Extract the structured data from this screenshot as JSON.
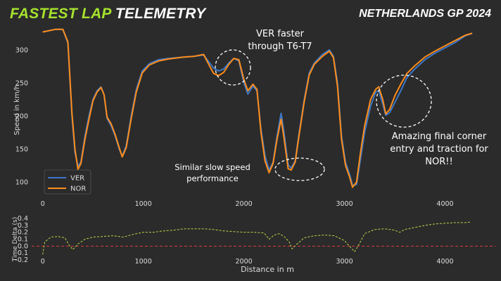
{
  "header": {
    "title_accent": "FASTEST LAP",
    "title_rest": "TELEMETRY",
    "event": "NETHERLANDS GP 2024"
  },
  "colors": {
    "background": "#2b2b2b",
    "accent": "#a6e22e",
    "ver": "#3a78c9",
    "nor": "#ff8c1a",
    "delta": "#b7d548",
    "zero_line": "#e23b3b",
    "text": "#ffffff",
    "axis_text": "#dddddd"
  },
  "annotations": {
    "t6t7": [
      "VER faster",
      "through T6-T7"
    ],
    "slow": [
      "Similar slow speed",
      "performance"
    ],
    "final": [
      "Amazing final corner",
      "entry and traction for",
      "NOR!!"
    ]
  },
  "chart_data": [
    {
      "type": "line",
      "ylabel": "Speed in km/h",
      "xlim": [
        -110,
        4500
      ],
      "ylim": [
        82,
        336
      ],
      "x_ticks": [
        0,
        1000,
        2000,
        3000,
        4000
      ],
      "y_ticks": [
        100,
        150,
        200,
        250,
        300
      ],
      "legend": [
        "VER",
        "NOR"
      ],
      "legend_position": "lower-left",
      "series": [
        {
          "name": "VER",
          "points": [
            [
              0,
              327
            ],
            [
              130,
              331
            ],
            [
              200,
              331
            ],
            [
              250,
              310
            ],
            [
              290,
              200
            ],
            [
              320,
              145
            ],
            [
              350,
              124
            ],
            [
              380,
              130
            ],
            [
              420,
              170
            ],
            [
              460,
              200
            ],
            [
              500,
              225
            ],
            [
              540,
              238
            ],
            [
              580,
              244
            ],
            [
              610,
              232
            ],
            [
              640,
              196
            ],
            [
              680,
              185
            ],
            [
              720,
              170
            ],
            [
              760,
              150
            ],
            [
              790,
              139
            ],
            [
              830,
              155
            ],
            [
              880,
              200
            ],
            [
              930,
              240
            ],
            [
              990,
              268
            ],
            [
              1060,
              279
            ],
            [
              1150,
              285
            ],
            [
              1250,
              287
            ],
            [
              1400,
              289
            ],
            [
              1500,
              290
            ],
            [
              1600,
              292
            ],
            [
              1650,
              282
            ],
            [
              1700,
              272
            ],
            [
              1750,
              268
            ],
            [
              1800,
              271
            ],
            [
              1850,
              280
            ],
            [
              1900,
              287
            ],
            [
              1950,
              283
            ],
            [
              2000,
              250
            ],
            [
              2040,
              233
            ],
            [
              2090,
              245
            ],
            [
              2130,
              238
            ],
            [
              2170,
              180
            ],
            [
              2210,
              140
            ],
            [
              2250,
              118
            ],
            [
              2290,
              130
            ],
            [
              2330,
              170
            ],
            [
              2370,
              204
            ],
            [
              2400,
              174
            ],
            [
              2440,
              126
            ],
            [
              2470,
              121
            ],
            [
              2510,
              132
            ],
            [
              2550,
              175
            ],
            [
              2600,
              225
            ],
            [
              2650,
              265
            ],
            [
              2700,
              280
            ],
            [
              2780,
              293
            ],
            [
              2850,
              300
            ],
            [
              2890,
              290
            ],
            [
              2930,
              250
            ],
            [
              2970,
              170
            ],
            [
              3010,
              130
            ],
            [
              3050,
              112
            ],
            [
              3080,
              95
            ],
            [
              3120,
              96
            ],
            [
              3160,
              135
            ],
            [
              3200,
              175
            ],
            [
              3260,
              215
            ],
            [
              3310,
              236
            ],
            [
              3340,
              238
            ],
            [
              3380,
              218
            ],
            [
              3410,
              201
            ],
            [
              3450,
              205
            ],
            [
              3500,
              220
            ],
            [
              3560,
              238
            ],
            [
              3620,
              258
            ],
            [
              3700,
              271
            ],
            [
              3800,
              285
            ],
            [
              3900,
              295
            ],
            [
              4000,
              303
            ],
            [
              4100,
              311
            ],
            [
              4200,
              321
            ],
            [
              4270,
              325
            ]
          ]
        },
        {
          "name": "NOR",
          "points": [
            [
              0,
              327
            ],
            [
              130,
              331
            ],
            [
              200,
              331
            ],
            [
              250,
              312
            ],
            [
              290,
              205
            ],
            [
              320,
              150
            ],
            [
              350,
              119
            ],
            [
              380,
              128
            ],
            [
              420,
              165
            ],
            [
              460,
              195
            ],
            [
              500,
              223
            ],
            [
              540,
              236
            ],
            [
              580,
              243
            ],
            [
              610,
              232
            ],
            [
              640,
              198
            ],
            [
              680,
              188
            ],
            [
              720,
              172
            ],
            [
              760,
              152
            ],
            [
              790,
              138
            ],
            [
              830,
              152
            ],
            [
              880,
              196
            ],
            [
              930,
              236
            ],
            [
              990,
              265
            ],
            [
              1060,
              277
            ],
            [
              1150,
              283
            ],
            [
              1250,
              286
            ],
            [
              1400,
              289
            ],
            [
              1500,
              290
            ],
            [
              1600,
              293
            ],
            [
              1650,
              278
            ],
            [
              1700,
              264
            ],
            [
              1750,
              261
            ],
            [
              1800,
              266
            ],
            [
              1850,
              278
            ],
            [
              1900,
              287
            ],
            [
              1950,
              285
            ],
            [
              2000,
              255
            ],
            [
              2040,
              238
            ],
            [
              2090,
              248
            ],
            [
              2130,
              240
            ],
            [
              2170,
              175
            ],
            [
              2210,
              132
            ],
            [
              2250,
              114
            ],
            [
              2290,
              128
            ],
            [
              2330,
              165
            ],
            [
              2370,
              195
            ],
            [
              2400,
              165
            ],
            [
              2440,
              120
            ],
            [
              2470,
              118
            ],
            [
              2510,
              130
            ],
            [
              2550,
              172
            ],
            [
              2600,
              222
            ],
            [
              2650,
              262
            ],
            [
              2700,
              278
            ],
            [
              2780,
              290
            ],
            [
              2850,
              298
            ],
            [
              2890,
              288
            ],
            [
              2930,
              245
            ],
            [
              2970,
              165
            ],
            [
              3010,
              125
            ],
            [
              3050,
              108
            ],
            [
              3080,
              92
            ],
            [
              3120,
              100
            ],
            [
              3160,
              145
            ],
            [
              3200,
              185
            ],
            [
              3260,
              225
            ],
            [
              3310,
              240
            ],
            [
              3340,
              244
            ],
            [
              3380,
              225
            ],
            [
              3410,
              203
            ],
            [
              3450,
              210
            ],
            [
              3500,
              230
            ],
            [
              3560,
              248
            ],
            [
              3620,
              264
            ],
            [
              3700,
              276
            ],
            [
              3800,
              289
            ],
            [
              3900,
              298
            ],
            [
              4000,
              306
            ],
            [
              4100,
              314
            ],
            [
              4200,
              322
            ],
            [
              4270,
              325
            ]
          ]
        }
      ]
    },
    {
      "type": "line",
      "ylabel": "Time Delta (s)",
      "xlabel": "Distance in m",
      "xlim": [
        -110,
        4500
      ],
      "ylim": [
        -0.24,
        0.44
      ],
      "x_ticks": [
        0,
        1000,
        2000,
        3000,
        4000
      ],
      "y_ticks": [
        -0.2,
        -0.1,
        0.0,
        0.1,
        0.2,
        0.3,
        0.4
      ],
      "reference_line": 0.0,
      "series": [
        {
          "name": "Delta",
          "points": [
            [
              0,
              -0.12
            ],
            [
              20,
              0.06
            ],
            [
              80,
              0.13
            ],
            [
              150,
              0.14
            ],
            [
              220,
              0.12
            ],
            [
              260,
              0.02
            ],
            [
              300,
              -0.05
            ],
            [
              350,
              0.03
            ],
            [
              420,
              0.1
            ],
            [
              500,
              0.13
            ],
            [
              600,
              0.14
            ],
            [
              700,
              0.15
            ],
            [
              800,
              0.13
            ],
            [
              900,
              0.17
            ],
            [
              1000,
              0.2
            ],
            [
              1100,
              0.2
            ],
            [
              1200,
              0.22
            ],
            [
              1300,
              0.23
            ],
            [
              1400,
              0.25
            ],
            [
              1500,
              0.25
            ],
            [
              1600,
              0.25
            ],
            [
              1700,
              0.24
            ],
            [
              1800,
              0.22
            ],
            [
              1900,
              0.21
            ],
            [
              2000,
              0.2
            ],
            [
              2100,
              0.2
            ],
            [
              2200,
              0.19
            ],
            [
              2250,
              0.1
            ],
            [
              2300,
              0.16
            ],
            [
              2350,
              0.18
            ],
            [
              2400,
              0.14
            ],
            [
              2450,
              0.06
            ],
            [
              2480,
              -0.04
            ],
            [
              2520,
              0.02
            ],
            [
              2600,
              0.12
            ],
            [
              2700,
              0.15
            ],
            [
              2800,
              0.16
            ],
            [
              2900,
              0.15
            ],
            [
              3000,
              0.08
            ],
            [
              3050,
              0.0
            ],
            [
              3100,
              -0.08
            ],
            [
              3150,
              0.04
            ],
            [
              3200,
              0.18
            ],
            [
              3300,
              0.24
            ],
            [
              3400,
              0.25
            ],
            [
              3500,
              0.23
            ],
            [
              3550,
              0.2
            ],
            [
              3600,
              0.24
            ],
            [
              3700,
              0.27
            ],
            [
              3800,
              0.3
            ],
            [
              3900,
              0.32
            ],
            [
              4000,
              0.33
            ],
            [
              4100,
              0.34
            ],
            [
              4200,
              0.34
            ],
            [
              4260,
              0.35
            ]
          ]
        }
      ]
    }
  ]
}
